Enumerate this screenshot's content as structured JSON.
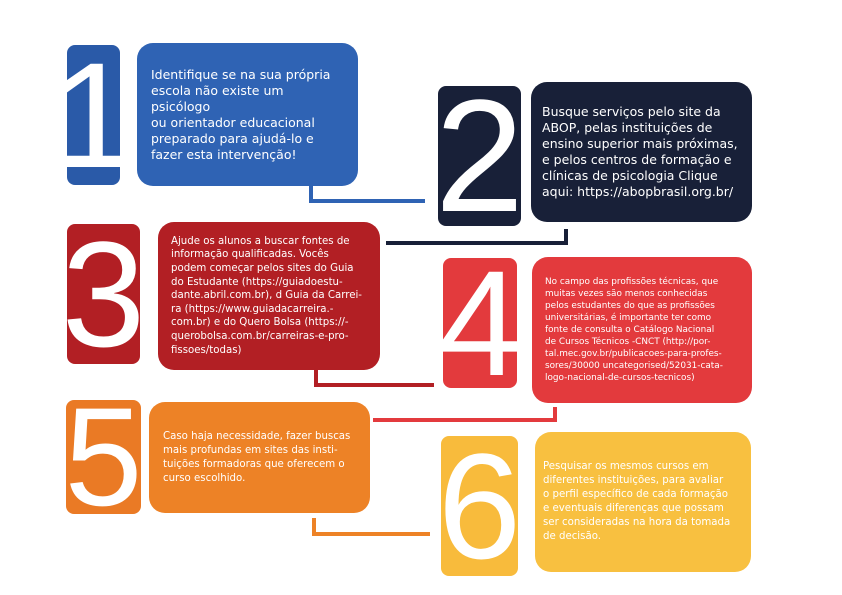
{
  "steps": [
    {
      "number": "1",
      "color": "#2f63b4",
      "text": "Identifique se na sua própria\nescola não existe um psicólogo\nou orientador educacional\npreparado para ajudá-lo e\nfazer esta intervenção!"
    },
    {
      "number": "2",
      "color": "#182038",
      "text": "Busque serviços pelo site da\nABOP, pelas instituições de\nensino superior mais próximas,\ne pelos centros de formação e\nclínicas de psicologia Clique\naqui: https://abopbrasil.org.br/"
    },
    {
      "number": "3",
      "color": "#b21f24",
      "text": "Ajude os alunos a buscar fontes de\ninformação qualificadas. Vocês\npodem começar pelos sites do  Guia\ndo Estudante (https://guiadoestu-\ndante.abril.com.br), d Guia da Carrei-\nra (https://www.guiadacarreira.-\ncom.br) e do Quero Bolsa (https://-\nquerobolsa.com.br/carreiras-e-pro-\nfissoes/todas)"
    },
    {
      "number": "4",
      "color": "#e33a3d",
      "text": "No campo das profissões técnicas, que\nmuitas vezes são menos conhecidas\npelos estudantes do que as profissões\nuniversitárias, é importante ter como\nfonte de consulta o Catálogo Nacional\nde Cursos Técnicos -CNCT (http://por-\ntal.mec.gov.br/publicacoes-para-profes-\nsores/30000 uncategorised/52031-cata-\nlogo-nacional-de-cursos-tecnicos)"
    },
    {
      "number": "5",
      "color": "#ed8226",
      "text": "Caso haja necessidade, fazer buscas\nmais profundas em sites das insti-\ntuições formadoras que oferecem o\ncurso escolhido."
    },
    {
      "number": "6",
      "color": "#f8c040",
      "text": "Pesquisar os mesmos cursos em\ndiferentes instituições, para avaliar\no perfil específico de cada formação\ne eventuais diferenças que possam\nser consideradas na hora da tomada\nde decisão."
    }
  ]
}
